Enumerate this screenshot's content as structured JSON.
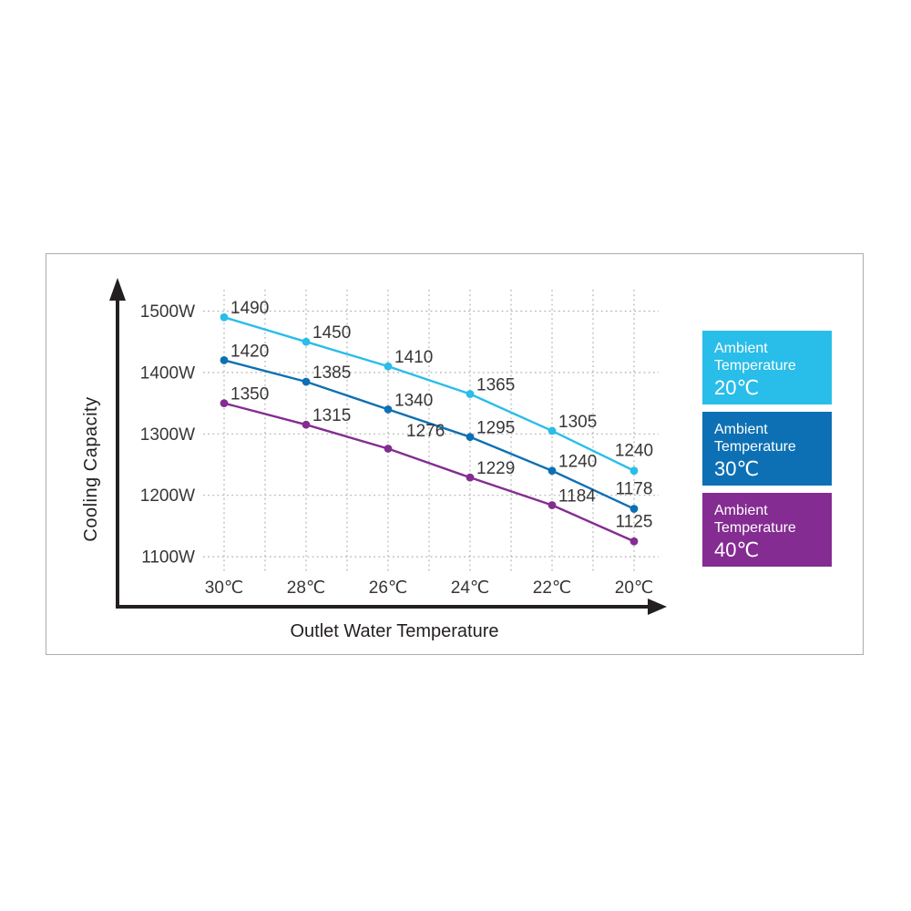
{
  "chart_data": {
    "type": "line",
    "title": "",
    "xlabel": "Outlet Water Temperature",
    "ylabel": "Cooling Capacity",
    "categories": [
      "30℃",
      "28℃",
      "26℃",
      "24℃",
      "22℃",
      "20℃"
    ],
    "y_ticks": [
      "1500W",
      "1400W",
      "1300W",
      "1200W",
      "1100W"
    ],
    "y_tick_values": [
      1500,
      1400,
      1300,
      1200,
      1100
    ],
    "ylim": [
      1100,
      1500
    ],
    "grid": "dotted",
    "legend_position": "right",
    "series": [
      {
        "name": "Ambient Temperature 20℃",
        "color": "#29bde9",
        "values": [
          1490,
          1450,
          1410,
          1365,
          1305,
          1240
        ]
      },
      {
        "name": "Ambient Temperature 30℃",
        "color": "#0d70b4",
        "values": [
          1420,
          1385,
          1340,
          1295,
          1240,
          1178
        ]
      },
      {
        "name": "Ambient Temperature 40℃",
        "color": "#842c91",
        "values": [
          1350,
          1315,
          1276,
          1229,
          1184,
          1125
        ]
      }
    ],
    "legend": [
      {
        "label": "Ambient Temperature",
        "temp": "20℃",
        "color": "#29bde9"
      },
      {
        "label": "Ambient Temperature",
        "temp": "30℃",
        "color": "#0d70b4"
      },
      {
        "label": "Ambient Temperature",
        "temp": "40℃",
        "color": "#842c91"
      }
    ],
    "colors": {
      "axis": "#231f20",
      "text": "#393536",
      "grid": "#b4b1b1",
      "panel_border": "#acacac"
    }
  }
}
